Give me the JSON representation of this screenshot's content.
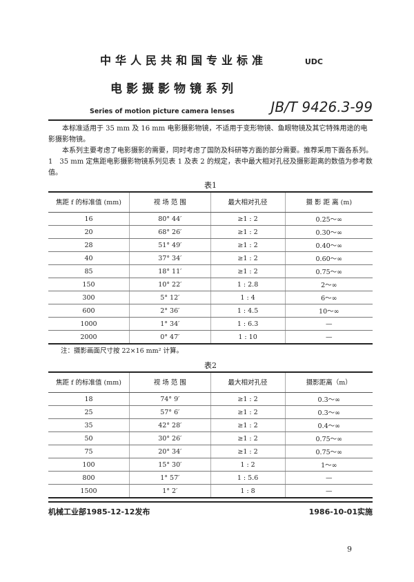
{
  "header": {
    "org_title": "中华人民共和国专业标准",
    "udc": "UDC",
    "title": "电影摄影物镜系列",
    "english_title": "Series of motion picture camera lenses",
    "standard_number": "JB/T 9426.3-99"
  },
  "body": {
    "para1": "本标准适用于 35 mm 及 16 mm 电影摄影物镜，不适用于变形物镜、鱼眼物镜及其它特殊用途的电影摄影物镜。",
    "para2": "本系列主要考虑了电影摄影的需要，同时考虑了国防及科研等方面的部分需要。推荐采用下面各系列。",
    "para3": "1　35 mm 定焦距电影摄影物镜系列见表 1 及表 2 的规定，表中最大相对孔径及摄影距离的数值为参考数值。"
  },
  "table1": {
    "caption": "表1",
    "headers": [
      "焦距 f 的标准值 (mm)",
      "视 场 范 围",
      "最大相对孔径",
      "摄 影 距 离 (m)"
    ],
    "rows": [
      [
        "16",
        "80° 44′",
        "≥1 : 2",
        "0.25～∞"
      ],
      [
        "20",
        "68° 26′",
        "≥1 : 2",
        "0.30～∞"
      ],
      [
        "28",
        "51° 49′",
        "≥1 : 2",
        "0.40～∞"
      ],
      [
        "40",
        "37° 34′",
        "≥1 : 2",
        "0.60～∞"
      ],
      [
        "85",
        "18° 11′",
        "≥1 : 2",
        "0.75～∞"
      ],
      [
        "150",
        "10° 22′",
        "1 : 2.8",
        "2～∞"
      ],
      [
        "300",
        "5° 12′",
        "1 : 4",
        "6～∞"
      ],
      [
        "600",
        "2° 36′",
        "1 : 4.5",
        "10～∞"
      ],
      [
        "1000",
        "1° 34′",
        "1 : 6.3",
        "—"
      ],
      [
        "2000",
        "0° 47′",
        "1 : 10",
        "—"
      ]
    ],
    "note": "注：摄影画面尺寸按 22×16 mm² 计算。"
  },
  "table2": {
    "caption": "表2",
    "headers": [
      "焦距 f 的标准值 (mm)",
      "视 场 范 围",
      "最大相对孔径",
      "摄影距离（m）"
    ],
    "rows": [
      [
        "18",
        "74° 9′",
        "≥1 : 2",
        "0.3～∞"
      ],
      [
        "25",
        "57° 6′",
        "≥1 : 2",
        "0.3～∞"
      ],
      [
        "35",
        "42° 28′",
        "≥1 : 2",
        "0.4～∞"
      ],
      [
        "50",
        "30° 26′",
        "≥1 : 2",
        "0.75～∞"
      ],
      [
        "75",
        "20° 34′",
        "≥1 : 2",
        "0.75～∞"
      ],
      [
        "100",
        "15° 30′",
        "1 : 2",
        "1～∞"
      ],
      [
        "800",
        "1° 57′",
        "1 : 5.6",
        "—"
      ],
      [
        "1500",
        "1° 2′",
        "1 : 8",
        "—"
      ]
    ]
  },
  "footer": {
    "issued": "机械工业部1985-12-12发布",
    "effective": "1986-10-01实施",
    "page": "9"
  }
}
